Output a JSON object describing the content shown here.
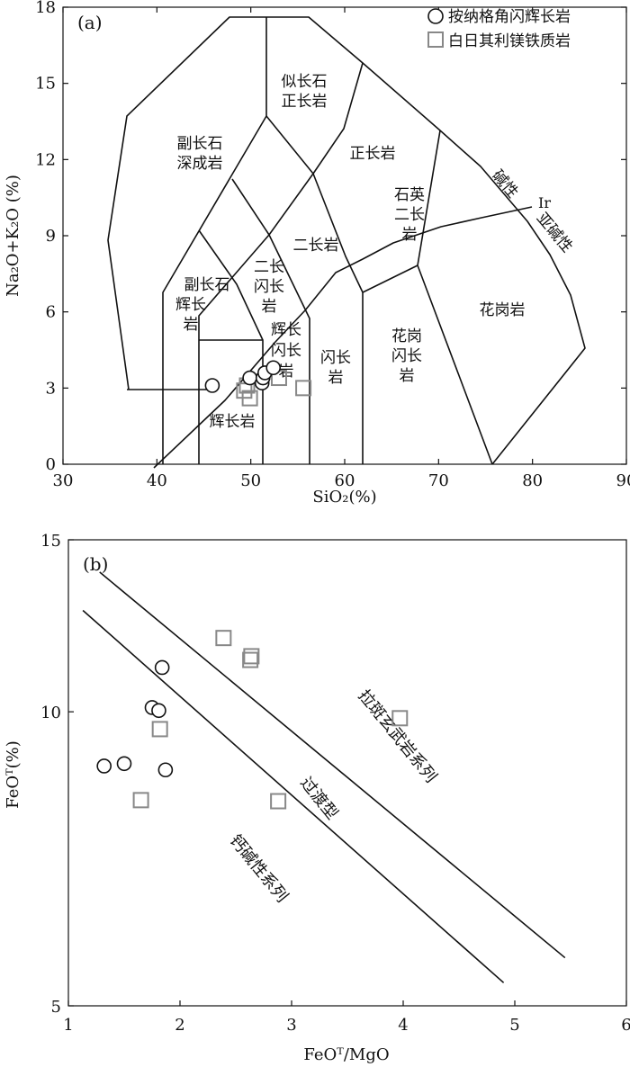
{
  "chart_data": [
    {
      "panel": "(a)",
      "type": "scatter",
      "xlabel": "SiO₂(%)",
      "ylabel": "Na₂O+K₂O (%)",
      "xlim": [
        30,
        90
      ],
      "ylim": [
        0,
        18
      ],
      "xticks": [
        30,
        40,
        50,
        60,
        70,
        80,
        90
      ],
      "yticks": [
        0,
        3,
        6,
        9,
        12,
        15,
        18
      ],
      "legend_position": "top-right",
      "series": [
        {
          "name": "按纳格角闪辉长岩",
          "marker": "circle",
          "x": [
            45.9,
            49.9,
            51.2,
            51.3,
            51.5,
            52.4
          ],
          "y": [
            3.1,
            3.4,
            3.2,
            3.4,
            3.6,
            3.8
          ]
        },
        {
          "name": "白日其利镁铁质岩",
          "marker": "square",
          "x": [
            49.3,
            49.6,
            49.9,
            53.0,
            55.6
          ],
          "y": [
            2.9,
            3.1,
            2.6,
            3.4,
            3.0
          ]
        }
      ],
      "field_labels": [
        {
          "text": [
            "似长石",
            "正长岩"
          ]
        },
        {
          "text": [
            "副长石",
            "深成岩"
          ]
        },
        {
          "text": [
            "正长岩"
          ]
        },
        {
          "text": [
            "二长岩"
          ]
        },
        {
          "text": [
            "副长石",
            "辉长岩"
          ]
        },
        {
          "text": [
            "二长",
            "闪长岩"
          ]
        },
        {
          "text": [
            "石英",
            "二长岩"
          ]
        },
        {
          "text": [
            "花岗岩"
          ]
        },
        {
          "text": [
            "辉长",
            "闪长岩"
          ]
        },
        {
          "text": [
            "闪长岩"
          ]
        },
        {
          "text": [
            "花岗闪长岩"
          ]
        },
        {
          "text": [
            "辉长岩"
          ]
        },
        {
          "text": [
            "碱性"
          ]
        },
        {
          "text": [
            "亚碱性"
          ]
        },
        {
          "text": [
            "Ir"
          ]
        }
      ]
    },
    {
      "panel": "(b)",
      "type": "scatter",
      "xlabel": "FeOᵀ/MgO",
      "ylabel": "FeOᵀ(%)",
      "xlim": [
        1,
        6
      ],
      "ylim": [
        5,
        15
      ],
      "y_scale": "log",
      "xticks": [
        1,
        2,
        3,
        4,
        5,
        6
      ],
      "yticks": [
        5,
        10,
        15
      ],
      "series": [
        {
          "name": "按纳格角闪辉长岩",
          "marker": "circle",
          "x": [
            1.32,
            1.5,
            1.75,
            1.81,
            1.84,
            1.87
          ],
          "y": [
            8.8,
            8.85,
            10.1,
            10.03,
            11.1,
            8.72
          ]
        },
        {
          "name": "白日其利镁铁质岩",
          "marker": "square",
          "x": [
            1.65,
            1.82,
            2.39,
            2.63,
            2.64,
            2.88,
            3.97
          ],
          "y": [
            8.12,
            9.6,
            11.9,
            11.3,
            11.4,
            8.1,
            9.85
          ]
        }
      ],
      "lines": [
        {
          "x": [
            1.28,
            5.45
          ],
          "y": [
            13.9,
            5.6
          ]
        },
        {
          "x": [
            1.13,
            4.9
          ],
          "y": [
            12.7,
            5.28
          ]
        }
      ],
      "field_labels": [
        "拉斑玄武岩系列",
        "过渡型",
        "钙碱性系列"
      ]
    }
  ]
}
